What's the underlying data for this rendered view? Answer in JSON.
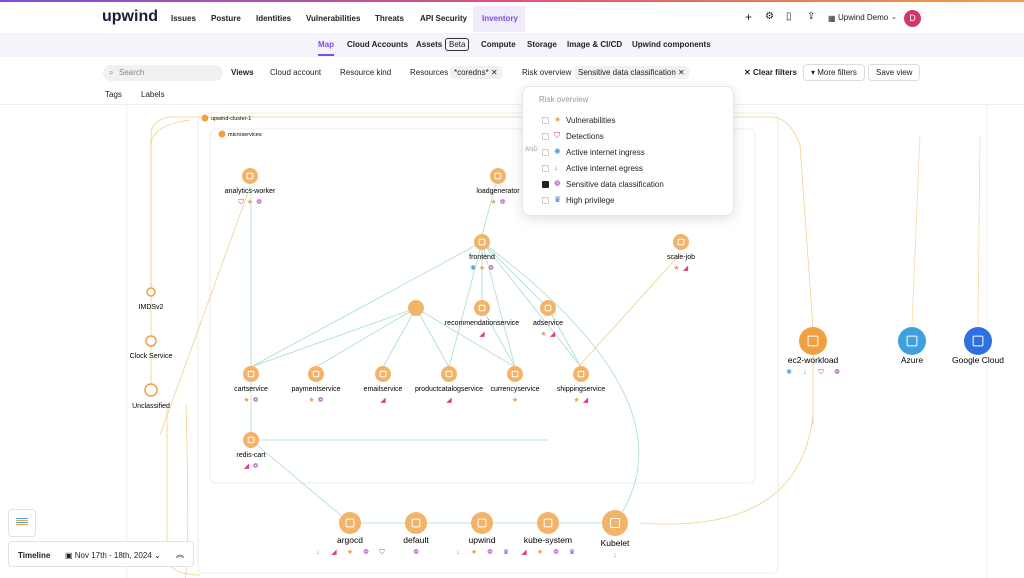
{
  "nav": {
    "logo": "upwind",
    "items": [
      "Issues",
      "Posture",
      "Identities",
      "Vulnerabilities",
      "Threats",
      "API Security",
      "Inventory"
    ],
    "active": 6,
    "user": "Upwind Demo",
    "avatar": "D"
  },
  "subnav": {
    "items": [
      "Map",
      "Cloud Accounts",
      "Assets",
      "Compute",
      "Storage",
      "Image & CI/CD",
      "Upwind components"
    ],
    "active": 0,
    "badge": "Beta"
  },
  "filters": {
    "search": "Search",
    "views": "Views",
    "cloud_account": "Cloud account",
    "resource_kind": "Resource kind",
    "resources": "Resources",
    "resources_value": "*coredns*",
    "risk": "Risk overview",
    "risk_value": "Sensitive data classification",
    "clear": "Clear filters",
    "more": "More filters",
    "save": "Save view",
    "tags": "Tags",
    "labels": "Labels"
  },
  "dropdown": {
    "title": "Risk overview",
    "and": "AND",
    "options": [
      {
        "label": "Vulnerabilities",
        "checked": false
      },
      {
        "label": "Detections",
        "checked": false
      },
      {
        "label": "Active internet ingress",
        "checked": false
      },
      {
        "label": "Active internet egress",
        "checked": false
      },
      {
        "label": "Sensitive data classification",
        "checked": true
      },
      {
        "label": "High privilege",
        "checked": false
      }
    ]
  },
  "map": {
    "clusters": [
      "upwind-cluster-1",
      "microservices"
    ],
    "nodes": [
      "analytics-worker",
      "loadgenerator",
      "frontend",
      "scale-job",
      "recommendationservice",
      "adservice",
      "cartservice",
      "paymentservice",
      "emailservice",
      "productcatalogservice",
      "currencyservice",
      "shippingservice",
      "redis-cart",
      "argocd",
      "default",
      "upwind",
      "kube-system",
      "Kubelet",
      "ec2-workload",
      "Azure",
      "Google Cloud",
      "IMDSv2",
      "Clock Service",
      "Unclassified"
    ]
  },
  "timeline": {
    "label": "Timeline",
    "range": "Nov 17th - 18th, 2024"
  }
}
